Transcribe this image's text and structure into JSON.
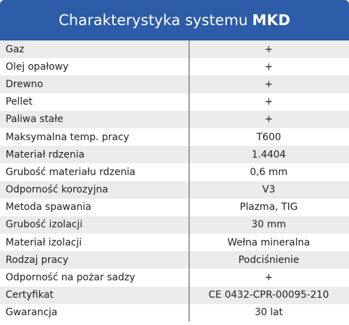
{
  "header": {
    "title_prefix": "Charakterystyka systemu",
    "title_brand": "MKD",
    "bg_color": "#2d5ca8"
  },
  "rows": [
    {
      "label": "Gaz",
      "value": "+"
    },
    {
      "label": "Olej opałowy",
      "value": "+"
    },
    {
      "label": "Drewno",
      "value": "+"
    },
    {
      "label": "Pellet",
      "value": "+"
    },
    {
      "label": "Paliwa stałe",
      "value": "+"
    },
    {
      "label": "Maksymalna temp. pracy",
      "value": "T600"
    },
    {
      "label": "Materiał rdzenia",
      "value": "1.4404"
    },
    {
      "label": "Grubość materiału rdzenia",
      "value": "0,6 mm"
    },
    {
      "label": "Odporność korozyjna",
      "value": "V3"
    },
    {
      "label": "Metoda spawania",
      "value": "Plazma, TIG"
    },
    {
      "label": "Grubość izolacji",
      "value": "30 mm"
    },
    {
      "label": "Materiał izolacji",
      "value": "Wełna mineralna"
    },
    {
      "label": "Rodzaj pracy",
      "value": "Podciśnienie"
    },
    {
      "label": "Odporność na pożar sadzy",
      "value": "+"
    },
    {
      "label": "Certyfikat",
      "value": "CE 0432-CPR-00095-210"
    },
    {
      "label": "Gwarancja",
      "value": "30 lat"
    }
  ]
}
